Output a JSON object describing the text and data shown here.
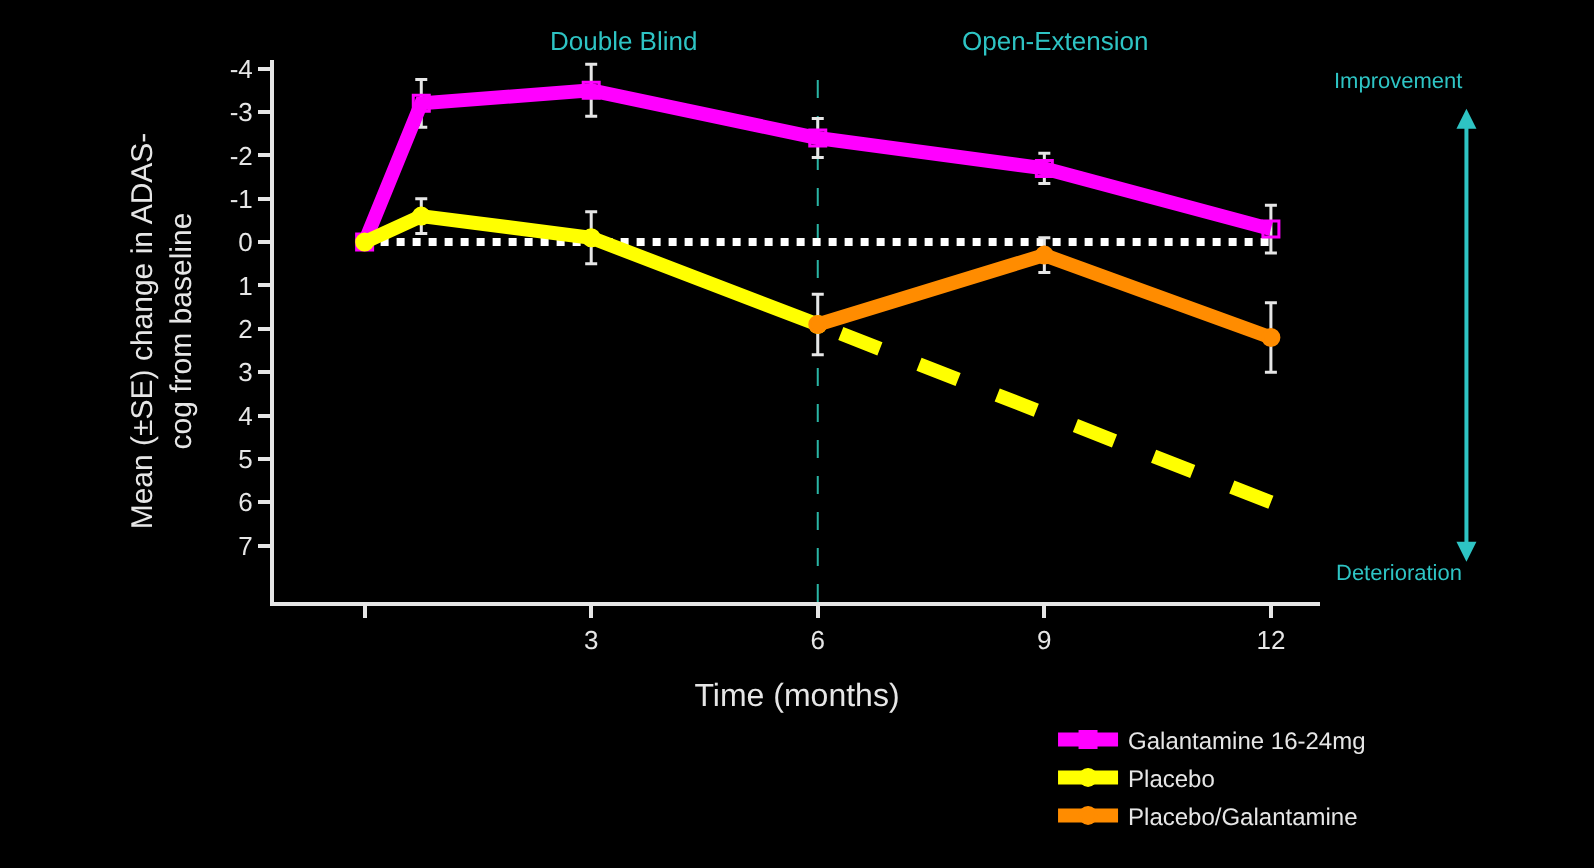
{
  "chart_data": {
    "type": "line",
    "xlabel": "Time (months)",
    "ylabel": "Mean (±SE) change in ADAS-\ncog from baseline",
    "xlim": [
      -1.2,
      12.65
    ],
    "xticks": [
      {
        "value": 0,
        "label": null
      },
      3,
      6,
      9,
      12
    ],
    "ylim": [
      8.3,
      -4.2
    ],
    "yticks": [
      -4,
      -3,
      -2,
      -1,
      0,
      1,
      2,
      3,
      4,
      5,
      6,
      7
    ],
    "grid": false,
    "legend": "bottom right",
    "series": [
      {
        "name": "Galantamine 16-24mg",
        "color": "#ff00ff",
        "marker": "square",
        "x": [
          0,
          0.75,
          3,
          6,
          9,
          12
        ],
        "values": [
          0,
          -3.2,
          -3.5,
          -2.4,
          -1.7,
          -0.3
        ],
        "errors": [
          null,
          0.55,
          0.6,
          0.45,
          0.35,
          0.55
        ]
      },
      {
        "name": "Placebo",
        "color": "#ffff00",
        "marker": "circle",
        "x": [
          0,
          0.75,
          3,
          6
        ],
        "values": [
          0,
          -0.6,
          -0.1,
          1.9
        ],
        "errors": [
          null,
          0.4,
          0.6,
          0.7
        ]
      },
      {
        "name": "Placebo/Galantamine",
        "color": "#ff8c00",
        "marker": "circle",
        "x": [
          6,
          9,
          12
        ],
        "values": [
          1.9,
          0.3,
          2.2
        ],
        "errors": [
          null,
          0.4,
          0.8
        ]
      },
      {
        "color": "#ffff00",
        "marker": "none",
        "line_style": "dashed",
        "x": [
          6,
          12
        ],
        "values": [
          1.9,
          6.0
        ]
      }
    ],
    "ref_lines": [
      {
        "axis": "y",
        "value": 0,
        "color": "#ffffff",
        "line_style": "dotted"
      },
      {
        "axis": "x",
        "value": 6,
        "color": "#2ab5a5",
        "line_style": "dashed"
      }
    ],
    "annotations": [
      "Double Blind",
      "Open-Extension",
      "Improvement",
      "Deterioration"
    ]
  }
}
